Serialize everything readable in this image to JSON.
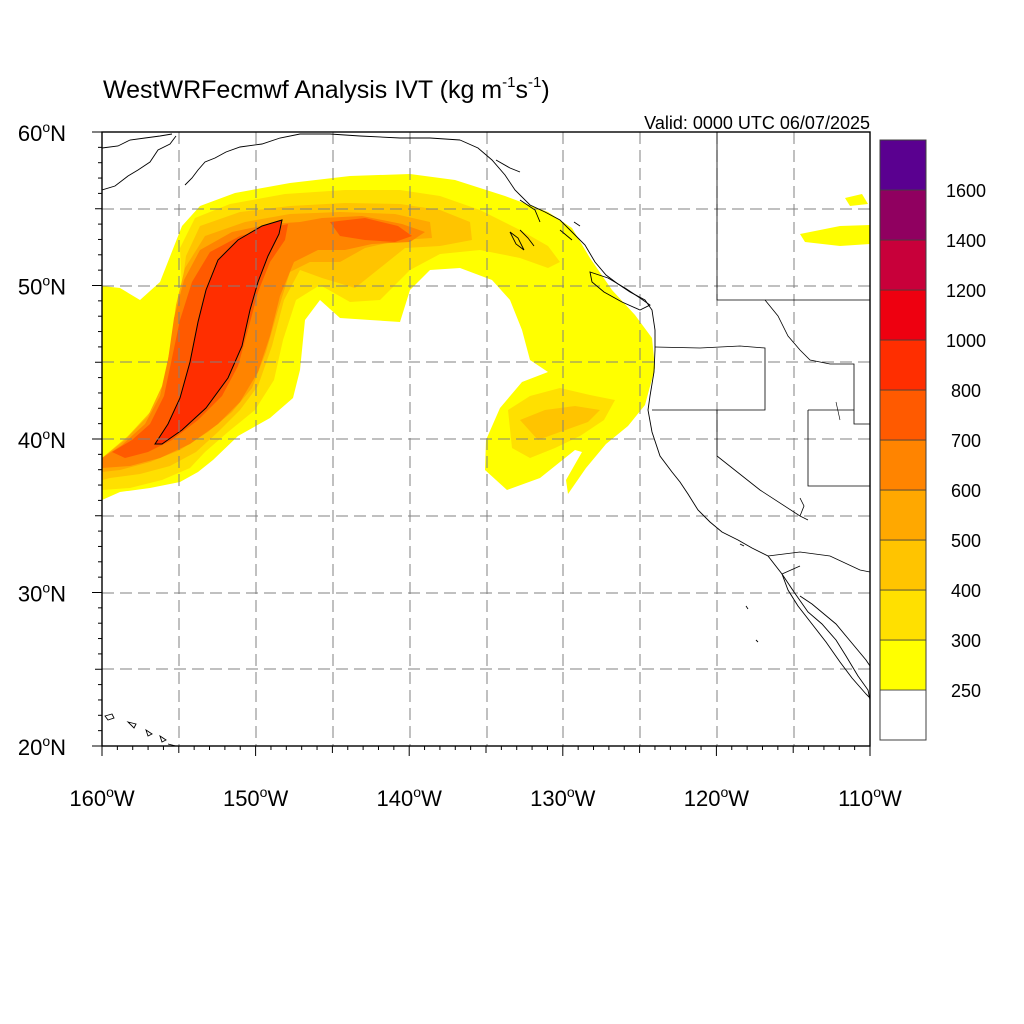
{
  "title": {
    "main": "WestWRFecmwf Analysis IVT (kg m",
    "exp1": "-1",
    "mid": "s",
    "exp2": "-1",
    "close": ")"
  },
  "valid_label": "Valid: 0000 UTC 06/07/2025",
  "degree_symbol": "o",
  "lat_labels": [
    {
      "value": 60,
      "num": "60",
      "hem": "N"
    },
    {
      "value": 50,
      "num": "50",
      "hem": "N"
    },
    {
      "value": 40,
      "num": "40",
      "hem": "N"
    },
    {
      "value": 30,
      "num": "30",
      "hem": "N"
    },
    {
      "value": 20,
      "num": "20",
      "hem": "N"
    }
  ],
  "lon_labels": [
    {
      "value": -160,
      "num": "160",
      "hem": "W"
    },
    {
      "value": -150,
      "num": "150",
      "hem": "W"
    },
    {
      "value": -140,
      "num": "140",
      "hem": "W"
    },
    {
      "value": -130,
      "num": "130",
      "hem": "W"
    },
    {
      "value": -120,
      "num": "120",
      "hem": "W"
    },
    {
      "value": -110,
      "num": "110",
      "hem": "W"
    }
  ],
  "map_extent": {
    "lon_min": -160,
    "lon_max": -110,
    "lat_min": 20,
    "lat_max": 60
  },
  "colorbar": {
    "bins": [
      {
        "color": "#ffffff"
      },
      {
        "color": "#ffff00"
      },
      {
        "color": "#ffe000"
      },
      {
        "color": "#ffc400"
      },
      {
        "color": "#ffa800"
      },
      {
        "color": "#ff8400"
      },
      {
        "color": "#ff5a00"
      },
      {
        "color": "#ff2e00"
      },
      {
        "color": "#ee0010"
      },
      {
        "color": "#c8003a"
      },
      {
        "color": "#900060"
      },
      {
        "color": "#5a0090"
      }
    ],
    "labels": [
      "250",
      "300",
      "400",
      "500",
      "600",
      "700",
      "800",
      "1000",
      "1200",
      "1400",
      "1600"
    ]
  }
}
